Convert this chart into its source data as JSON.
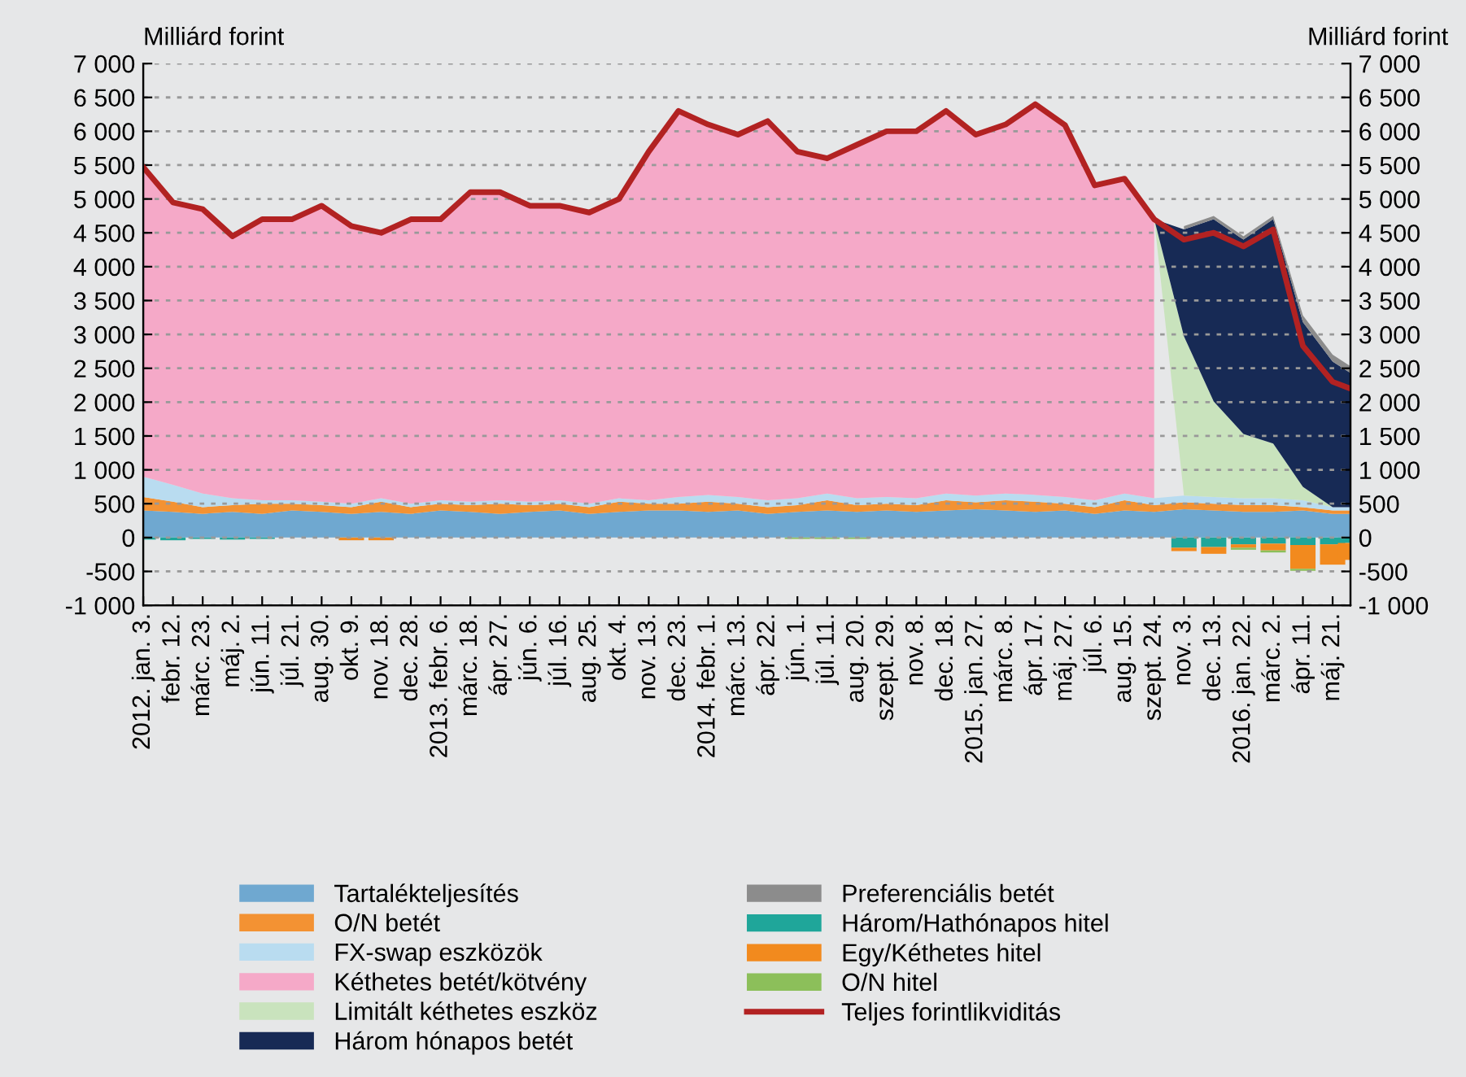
{
  "chart_data": {
    "type": "area",
    "stacked": true,
    "ylabel": "Milliárd forint",
    "y2label": "Milliárd forint",
    "x": [
      "2012-01-03",
      "2012-02-12",
      "2012-03-23",
      "2012-05-02",
      "2012-06-11",
      "2012-07-21",
      "2012-08-30",
      "2012-10-09",
      "2012-11-18",
      "2012-12-28",
      "2013-02-06",
      "2013-03-18",
      "2013-04-27",
      "2013-06-06",
      "2013-07-16",
      "2013-08-25",
      "2013-10-04",
      "2013-11-13",
      "2013-12-23",
      "2014-02-01",
      "2014-03-13",
      "2014-04-22",
      "2014-06-01",
      "2014-07-11",
      "2014-08-20",
      "2014-09-29",
      "2014-11-08",
      "2014-12-18",
      "2015-01-27",
      "2015-03-08",
      "2015-04-17",
      "2015-05-27",
      "2015-07-06",
      "2015-08-15",
      "2015-09-24",
      "2015-11-03",
      "2015-12-13",
      "2016-01-22",
      "2016-03-02",
      "2016-04-11",
      "2016-05-21",
      "2016-06-14"
    ],
    "series": [
      {
        "name": "Tartalékteljesítés",
        "color": "#6fa8d0",
        "values": [
          400,
          380,
          350,
          380,
          350,
          400,
          380,
          350,
          380,
          350,
          400,
          380,
          350,
          380,
          400,
          350,
          380,
          400,
          400,
          380,
          400,
          350,
          380,
          400,
          380,
          400,
          380,
          400,
          420,
          400,
          380,
          400,
          350,
          400,
          380,
          420,
          400,
          380,
          380,
          400,
          350,
          350
        ]
      },
      {
        "name": "O/N betét",
        "color": "#f39233",
        "values": [
          200,
          150,
          100,
          100,
          150,
          100,
          100,
          100,
          150,
          100,
          100,
          100,
          150,
          100,
          100,
          100,
          150,
          100,
          100,
          150,
          100,
          100,
          100,
          150,
          100,
          100,
          100,
          150,
          100,
          150,
          150,
          100,
          100,
          150,
          100,
          100,
          100,
          100,
          100,
          50,
          50,
          50
        ]
      },
      {
        "name": "FX-swap eszközök",
        "color": "#b9dcf0",
        "values": [
          300,
          250,
          200,
          100,
          50,
          50,
          50,
          50,
          50,
          50,
          50,
          50,
          50,
          50,
          50,
          50,
          50,
          50,
          100,
          100,
          100,
          100,
          100,
          100,
          100,
          100,
          100,
          100,
          100,
          100,
          100,
          100,
          100,
          100,
          100,
          100,
          100,
          100,
          100,
          100,
          50,
          50
        ]
      },
      {
        "name": "Kéthetes betét/kötvény",
        "color": "#f5a9c8",
        "values": [
          4570,
          4170,
          4200,
          3870,
          4150,
          4150,
          4370,
          4100,
          3920,
          4200,
          4150,
          4570,
          4550,
          4370,
          4350,
          4300,
          4420,
          5150,
          5700,
          5470,
          5350,
          5600,
          5120,
          4950,
          5220,
          5400,
          5420,
          5650,
          5330,
          5450,
          5770,
          5490,
          4650,
          4650,
          4120,
          null,
          null,
          null,
          null,
          null,
          null,
          null
        ]
      },
      {
        "name": "Limitált kéthetes eszköz",
        "color": "#c9e3bd",
        "values": [
          null,
          null,
          null,
          null,
          null,
          null,
          null,
          null,
          null,
          null,
          null,
          null,
          null,
          null,
          null,
          null,
          null,
          null,
          null,
          null,
          null,
          null,
          null,
          null,
          null,
          null,
          null,
          null,
          null,
          null,
          null,
          null,
          null,
          null,
          0,
          2350,
          1410,
          950,
          810,
          200,
          0,
          null
        ]
      },
      {
        "name": "Három hónapos betét",
        "color": "#172a55",
        "values": [
          null,
          null,
          null,
          null,
          null,
          null,
          null,
          null,
          null,
          null,
          null,
          null,
          null,
          null,
          null,
          null,
          null,
          null,
          null,
          null,
          null,
          null,
          null,
          null,
          null,
          null,
          null,
          null,
          null,
          null,
          null,
          null,
          null,
          null,
          0,
          1580,
          2690,
          2870,
          3310,
          2430,
          2150,
          1980
        ]
      },
      {
        "name": "Preferenciális betét",
        "color": "#8c8c8c",
        "values": [
          null,
          null,
          null,
          null,
          null,
          null,
          null,
          null,
          null,
          null,
          null,
          null,
          null,
          null,
          null,
          null,
          null,
          null,
          null,
          null,
          null,
          null,
          null,
          null,
          null,
          null,
          null,
          null,
          null,
          null,
          null,
          null,
          null,
          null,
          null,
          50,
          50,
          50,
          50,
          100,
          100,
          100
        ]
      },
      {
        "name": "Három/Hathónapos hitel",
        "type": "bar",
        "color": "#1fa69a",
        "values": [
          -30,
          -40,
          -20,
          -30,
          -20,
          null,
          null,
          null,
          null,
          null,
          null,
          null,
          null,
          null,
          null,
          null,
          null,
          null,
          null,
          null,
          null,
          null,
          null,
          null,
          null,
          null,
          null,
          null,
          null,
          null,
          null,
          null,
          null,
          null,
          null,
          -150,
          -140,
          -100,
          -90,
          -110,
          -100,
          -80
        ]
      },
      {
        "name": "Egy/Kéthetes hitel",
        "type": "bar",
        "color": "#f28a1e",
        "values": [
          null,
          null,
          null,
          null,
          null,
          null,
          null,
          -40,
          -40,
          null,
          null,
          null,
          null,
          null,
          null,
          null,
          null,
          null,
          null,
          null,
          null,
          null,
          null,
          null,
          null,
          null,
          null,
          null,
          null,
          null,
          null,
          null,
          null,
          null,
          null,
          -50,
          -100,
          -50,
          -100,
          -350,
          -300,
          -250
        ]
      },
      {
        "name": "O/N hitel",
        "type": "bar",
        "color": "#8cbf5a",
        "values": [
          null,
          null,
          null,
          null,
          null,
          null,
          null,
          null,
          null,
          null,
          null,
          null,
          null,
          null,
          null,
          null,
          null,
          null,
          null,
          null,
          null,
          null,
          -20,
          -20,
          -20,
          null,
          null,
          null,
          null,
          null,
          null,
          null,
          null,
          null,
          null,
          null,
          null,
          -30,
          -30,
          -30,
          null,
          null
        ]
      },
      {
        "name": "Teljes forintlikviditás",
        "type": "line",
        "color": "#b22222",
        "values": [
          5470,
          4950,
          4850,
          4450,
          4700,
          4700,
          4900,
          4600,
          4500,
          4700,
          4700,
          5100,
          5100,
          4900,
          4900,
          4800,
          5000,
          5700,
          6300,
          6100,
          5950,
          6150,
          5700,
          5600,
          5800,
          6000,
          6000,
          6300,
          5950,
          6100,
          6400,
          6090,
          5200,
          5300,
          4700,
          4400,
          4500,
          4300,
          4550,
          2830,
          2300,
          2200
        ]
      }
    ],
    "xlim": [
      "2012-01-03",
      "2016-06-14"
    ],
    "xticks": [
      {
        "value": "2012-01-03",
        "label": "2012. jan. 3."
      },
      {
        "value": "2012-02-12",
        "label": "febr. 12."
      },
      {
        "value": "2012-03-23",
        "label": "márc. 23."
      },
      {
        "value": "2012-05-02",
        "label": "máj. 2."
      },
      {
        "value": "2012-06-11",
        "label": "jún. 11."
      },
      {
        "value": "2012-07-21",
        "label": "júl. 21."
      },
      {
        "value": "2012-08-30",
        "label": "aug. 30."
      },
      {
        "value": "2012-10-09",
        "label": "okt. 9."
      },
      {
        "value": "2012-11-18",
        "label": "nov. 18."
      },
      {
        "value": "2012-12-28",
        "label": "dec. 28."
      },
      {
        "value": "2013-02-06",
        "label": "2013. febr. 6."
      },
      {
        "value": "2013-03-18",
        "label": "márc. 18."
      },
      {
        "value": "2013-04-27",
        "label": "ápr. 27."
      },
      {
        "value": "2013-06-06",
        "label": "jún. 6."
      },
      {
        "value": "2013-07-16",
        "label": "júl. 16."
      },
      {
        "value": "2013-08-25",
        "label": "aug. 25."
      },
      {
        "value": "2013-10-04",
        "label": "okt. 4."
      },
      {
        "value": "2013-11-13",
        "label": "nov. 13."
      },
      {
        "value": "2013-12-23",
        "label": "dec. 23."
      },
      {
        "value": "2014-02-01",
        "label": "2014. febr. 1."
      },
      {
        "value": "2014-03-13",
        "label": "márc. 13."
      },
      {
        "value": "2014-04-22",
        "label": "ápr. 22."
      },
      {
        "value": "2014-06-01",
        "label": "jún. 1."
      },
      {
        "value": "2014-07-11",
        "label": "júl. 11."
      },
      {
        "value": "2014-08-20",
        "label": "aug. 20."
      },
      {
        "value": "2014-09-29",
        "label": "szept. 29."
      },
      {
        "value": "2014-11-08",
        "label": "nov. 8."
      },
      {
        "value": "2014-12-18",
        "label": "dec. 18."
      },
      {
        "value": "2015-01-27",
        "label": "2015. jan. 27."
      },
      {
        "value": "2015-03-08",
        "label": "márc. 8."
      },
      {
        "value": "2015-04-17",
        "label": "ápr. 17."
      },
      {
        "value": "2015-05-27",
        "label": "máj. 27."
      },
      {
        "value": "2015-07-06",
        "label": "júl. 6."
      },
      {
        "value": "2015-08-15",
        "label": "aug. 15."
      },
      {
        "value": "2015-09-24",
        "label": "szept. 24."
      },
      {
        "value": "2015-11-03",
        "label": "nov. 3."
      },
      {
        "value": "2015-12-13",
        "label": "dec. 13."
      },
      {
        "value": "2016-01-22",
        "label": "2016. jan. 22."
      },
      {
        "value": "2016-03-02",
        "label": "márc. 2."
      },
      {
        "value": "2016-04-11",
        "label": "ápr. 11."
      },
      {
        "value": "2016-05-21",
        "label": "máj. 21."
      }
    ],
    "ylim": [
      -1000,
      7000
    ],
    "yticks": [
      {
        "value": -1000,
        "label": "-1 000"
      },
      {
        "value": -500,
        "label": "-500"
      },
      {
        "value": 0,
        "label": "0"
      },
      {
        "value": 500,
        "label": "500"
      },
      {
        "value": 1000,
        "label": "1 000"
      },
      {
        "value": 1500,
        "label": "1 500"
      },
      {
        "value": 2000,
        "label": "2 000"
      },
      {
        "value": 2500,
        "label": "2 500"
      },
      {
        "value": 3000,
        "label": "3 000"
      },
      {
        "value": 3500,
        "label": "3 500"
      },
      {
        "value": 4000,
        "label": "4 000"
      },
      {
        "value": 4500,
        "label": "4 500"
      },
      {
        "value": 5000,
        "label": "5 000"
      },
      {
        "value": 5500,
        "label": "5 500"
      },
      {
        "value": 6000,
        "label": "6 000"
      },
      {
        "value": 6500,
        "label": "6 500"
      },
      {
        "value": 7000,
        "label": "7 000"
      }
    ],
    "y2lim": [
      -1000,
      7000
    ],
    "y2ticks": [
      {
        "value": -1000,
        "label": "-1 000"
      },
      {
        "value": -500,
        "label": "-500"
      },
      {
        "value": 0,
        "label": "0"
      },
      {
        "value": 500,
        "label": "500"
      },
      {
        "value": 1000,
        "label": "1 000"
      },
      {
        "value": 1500,
        "label": "1 500"
      },
      {
        "value": 2000,
        "label": "2 000"
      },
      {
        "value": 2500,
        "label": "2 500"
      },
      {
        "value": 3000,
        "label": "3 000"
      },
      {
        "value": 3500,
        "label": "3 500"
      },
      {
        "value": 4000,
        "label": "4 000"
      },
      {
        "value": 4500,
        "label": "4 500"
      },
      {
        "value": 5000,
        "label": "5 000"
      },
      {
        "value": 5500,
        "label": "5 500"
      },
      {
        "value": 6000,
        "label": "6 000"
      },
      {
        "value": 6500,
        "label": "6 500"
      },
      {
        "value": 7000,
        "label": "7 000"
      }
    ],
    "grid": "y",
    "legend": "bottom"
  }
}
